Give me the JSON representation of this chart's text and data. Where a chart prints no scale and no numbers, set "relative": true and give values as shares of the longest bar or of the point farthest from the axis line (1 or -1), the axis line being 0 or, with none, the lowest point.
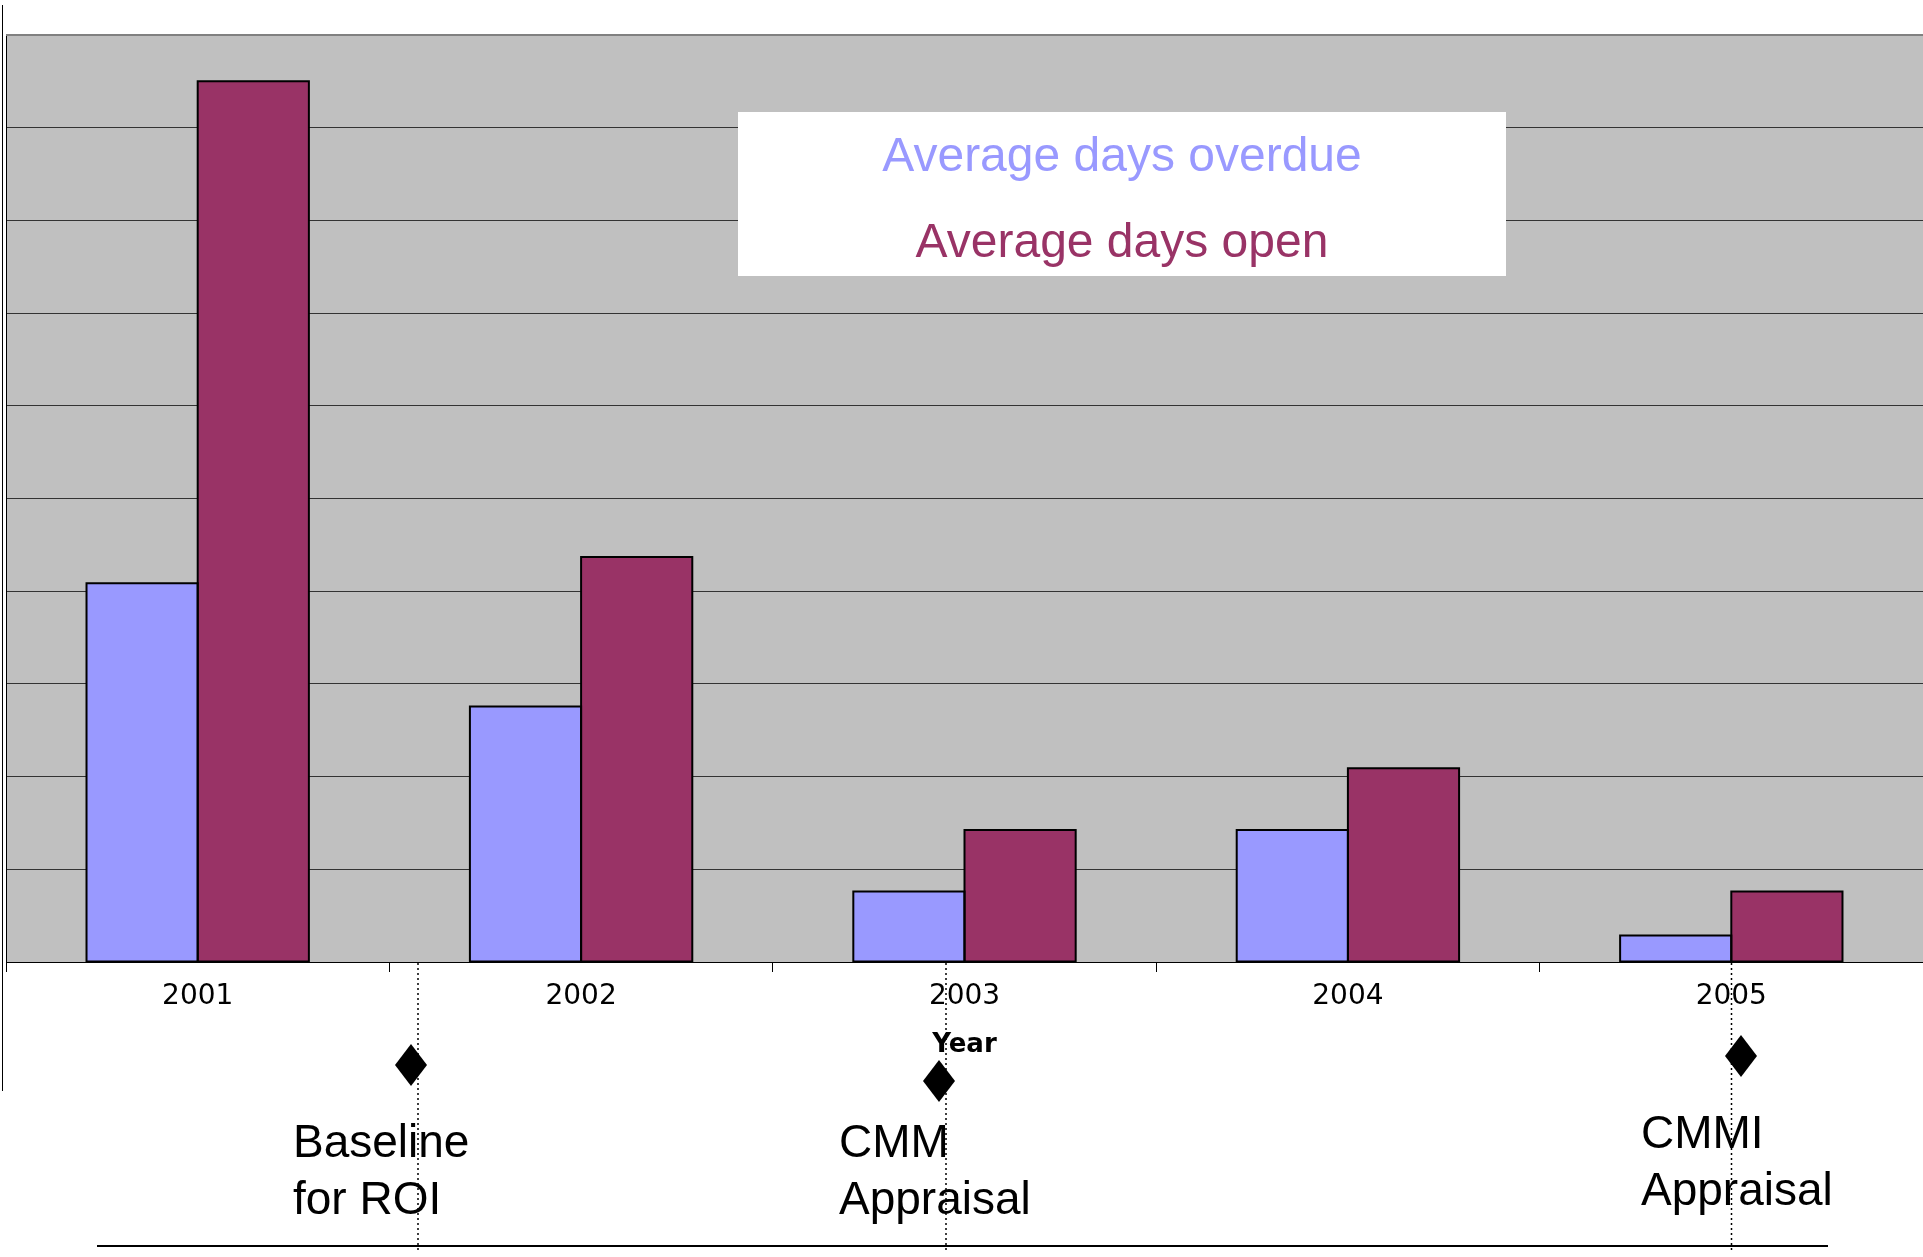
{
  "chart_data": {
    "type": "bar",
    "xlabel": "Year",
    "categories": [
      "2001",
      "2002",
      "2003",
      "2004",
      "2005"
    ],
    "series": [
      {
        "name": "Average days overdue",
        "color": "#9999ff",
        "values": [
          0.43,
          0.29,
          0.08,
          0.15,
          0.03
        ]
      },
      {
        "name": "Average days open",
        "color": "#993366",
        "values": [
          1,
          0.46,
          0.15,
          0.22,
          0.08
        ]
      }
    ],
    "relative": true,
    "grid": "y",
    "legend": "top",
    "annotations": [
      "Baseline for ROI",
      "CMM Appraisal",
      "CMMI Appraisal"
    ]
  }
}
